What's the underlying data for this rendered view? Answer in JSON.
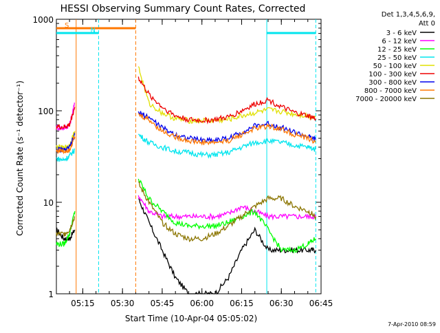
{
  "chart_data": {
    "type": "line",
    "title": "HESSI Observing Summary Count Rates, Corrected",
    "xlabel": "Start Time (10-Apr-04 05:05:02)",
    "ylabel": "Corrected Count Rate (s⁻¹ detector⁻¹)",
    "y_scale": "log",
    "ylim": [
      1,
      1000
    ],
    "xlim": [
      "05:05:02",
      "06:45:00"
    ],
    "x_ticks": [
      "05:15",
      "05:30",
      "05:45",
      "06:00",
      "06:15",
      "06:30",
      "06:45"
    ],
    "y_ticks": [
      "1",
      "10",
      "100",
      "1000"
    ],
    "legend_position": "right",
    "legend_header": [
      "Det 1,3,4,5,6,9,",
      "Att 0"
    ],
    "timestamp": "7-Apr-2010 08:59",
    "flags": [
      {
        "label": "S",
        "color": "#ff7700",
        "start": "05:05:02",
        "end": "05:35:00"
      },
      {
        "label": "N",
        "color": "#00e5ee",
        "start": "05:05:02",
        "end": "05:21:00"
      },
      {
        "label": "",
        "color": "#00e5ee",
        "start": "06:24:30",
        "end": "06:43:00"
      }
    ],
    "markers": [
      {
        "x": "05:12:30",
        "color": "#ff7700",
        "style": "solid"
      },
      {
        "x": "05:21:00",
        "color": "#00e5ee",
        "style": "dashed"
      },
      {
        "x": "05:35:00",
        "color": "#ff7700",
        "style": "dashed"
      },
      {
        "x": "06:24:30",
        "color": "#00e5ee",
        "style": "solid"
      },
      {
        "x": "06:43:00",
        "color": "#00e5ee",
        "style": "dashed"
      }
    ],
    "series": [
      {
        "name": "3 - 6 keV",
        "color": "#000000",
        "x": [
          "05:05",
          "05:08",
          "05:10",
          "05:12",
          "05:36",
          "05:40",
          "05:45",
          "05:50",
          "05:55",
          "06:00",
          "06:05",
          "06:10",
          "06:15",
          "06:20",
          "06:25",
          "06:30",
          "06:35",
          "06:40",
          "06:43"
        ],
        "y": [
          5,
          4,
          4,
          5,
          11,
          6,
          3,
          1.5,
          1,
          1,
          1,
          1.5,
          3,
          5,
          3,
          3,
          3,
          3,
          3
        ]
      },
      {
        "name": "6 - 12 keV",
        "color": "#ff00ff",
        "x": [
          "05:05",
          "05:08",
          "05:10",
          "05:12",
          "05:36",
          "05:40",
          "05:45",
          "05:50",
          "05:55",
          "06:00",
          "06:05",
          "06:10",
          "06:15",
          "06:20",
          "06:25",
          "06:30",
          "06:35",
          "06:40",
          "06:43"
        ],
        "y": [
          66,
          65,
          70,
          120,
          12,
          8,
          7,
          7,
          7,
          7,
          7,
          7.5,
          9,
          8,
          7,
          7,
          7,
          7,
          7
        ]
      },
      {
        "name": "12 - 25 keV",
        "color": "#00ff00",
        "x": [
          "05:05",
          "05:08",
          "05:10",
          "05:12",
          "05:36",
          "05:40",
          "05:45",
          "05:50",
          "05:55",
          "06:00",
          "06:05",
          "06:10",
          "06:15",
          "06:20",
          "06:25",
          "06:30",
          "06:35",
          "06:40",
          "06:43"
        ],
        "y": [
          3.5,
          3.5,
          4.5,
          8,
          18,
          11,
          8,
          6,
          5.5,
          5.5,
          5.5,
          6,
          7,
          8,
          5,
          3,
          3,
          3.5,
          4
        ]
      },
      {
        "name": "25 - 50 keV",
        "color": "#00e5ee",
        "x": [
          "05:05",
          "05:08",
          "05:10",
          "05:12",
          "05:36",
          "05:40",
          "05:45",
          "05:50",
          "05:55",
          "06:00",
          "06:05",
          "06:10",
          "06:15",
          "06:20",
          "06:25",
          "06:30",
          "06:35",
          "06:40",
          "06:43"
        ],
        "y": [
          30,
          29,
          32,
          38,
          55,
          45,
          40,
          36,
          35,
          33,
          33,
          35,
          40,
          45,
          47,
          45,
          42,
          40,
          38
        ]
      },
      {
        "name": "50 - 100 keV",
        "color": "#e0e000",
        "x": [
          "05:05",
          "05:08",
          "05:10",
          "05:12",
          "05:36",
          "05:40",
          "05:45",
          "05:50",
          "05:55",
          "06:00",
          "06:05",
          "06:10",
          "06:15",
          "06:20",
          "06:25",
          "06:30",
          "06:35",
          "06:40",
          "06:43"
        ],
        "y": [
          40,
          39,
          42,
          60,
          300,
          120,
          95,
          82,
          78,
          78,
          78,
          80,
          88,
          95,
          102,
          98,
          92,
          88,
          85
        ]
      },
      {
        "name": "100 - 300 keV",
        "color": "#ee0000",
        "x": [
          "05:05",
          "05:08",
          "05:10",
          "05:12",
          "05:36",
          "05:40",
          "05:45",
          "05:50",
          "05:55",
          "06:00",
          "06:05",
          "06:10",
          "06:15",
          "06:20",
          "06:25",
          "06:30",
          "06:35",
          "06:40",
          "06:43"
        ],
        "y": [
          67,
          66,
          70,
          110,
          230,
          150,
          110,
          88,
          80,
          78,
          80,
          85,
          100,
          118,
          132,
          110,
          95,
          88,
          82
        ]
      },
      {
        "name": "300 - 800 keV",
        "color": "#0000ee",
        "x": [
          "05:05",
          "05:08",
          "05:10",
          "05:12",
          "05:36",
          "05:40",
          "05:45",
          "05:50",
          "05:55",
          "06:00",
          "06:05",
          "06:10",
          "06:15",
          "06:20",
          "06:25",
          "06:30",
          "06:35",
          "06:40",
          "06:43"
        ],
        "y": [
          38,
          37,
          39,
          55,
          95,
          85,
          65,
          55,
          50,
          48,
          48,
          50,
          58,
          68,
          72,
          66,
          58,
          52,
          48
        ]
      },
      {
        "name": "800 - 7000 keV",
        "color": "#ff7700",
        "x": [
          "05:05",
          "05:08",
          "05:10",
          "05:12",
          "05:36",
          "05:40",
          "05:45",
          "05:50",
          "05:55",
          "06:00",
          "06:05",
          "06:10",
          "06:15",
          "06:20",
          "06:25",
          "06:30",
          "06:35",
          "06:40",
          "06:43"
        ],
        "y": [
          37,
          36,
          38,
          52,
          90,
          80,
          60,
          52,
          47,
          45,
          45,
          47,
          55,
          64,
          68,
          63,
          55,
          50,
          46
        ]
      },
      {
        "name": "7000 - 20000 keV",
        "color": "#8b7500",
        "x": [
          "05:05",
          "05:08",
          "05:10",
          "05:12",
          "05:36",
          "05:40",
          "05:45",
          "05:50",
          "05:55",
          "06:00",
          "06:05",
          "06:10",
          "06:15",
          "06:20",
          "06:25",
          "06:30",
          "06:35",
          "06:40",
          "06:43"
        ],
        "y": [
          4.5,
          4.5,
          5,
          7,
          16,
          10,
          6,
          4.5,
          4,
          4,
          4.5,
          5.5,
          7,
          9,
          11,
          11,
          9,
          8,
          7
        ]
      }
    ]
  }
}
